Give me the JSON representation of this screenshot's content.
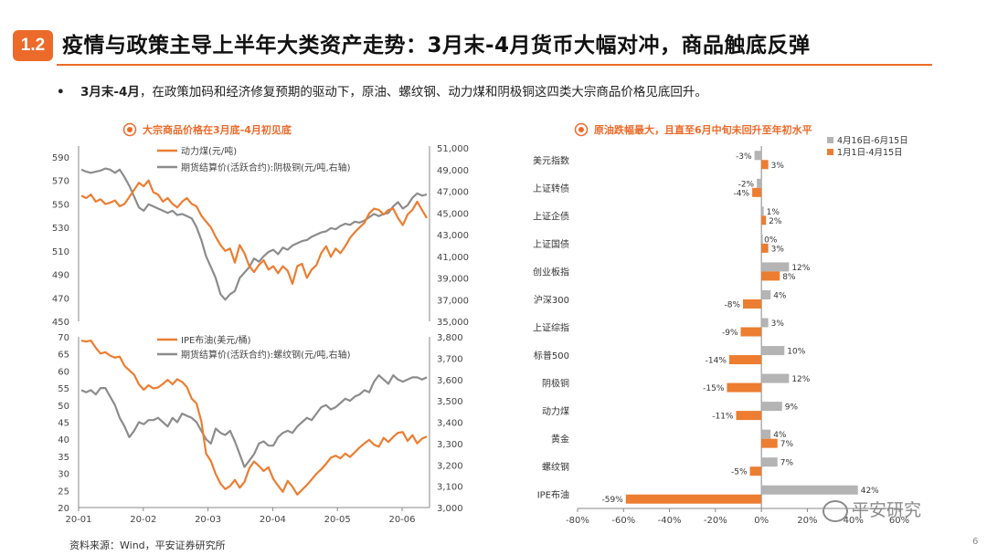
{
  "header": {
    "badge": "1.2",
    "title": "疫情与政策主导上半年大类资产走势：3月末-4月货币大幅对冲，商品触底反弹"
  },
  "bullet": {
    "marker": "•",
    "lead": "3月末-4月",
    "text": "，在政策加码和经济修复预期的驱动下，原油、螺纹钢、动力煤和阴极铜这四类大宗商品价格见底回升。"
  },
  "footer": {
    "source": "资料来源：Wind，平安证券研究所",
    "page": "6",
    "watermark": "平安研究"
  },
  "colors": {
    "accent": "#ec6a2a",
    "orange": "#ec7d31",
    "gray": "#8c8c8c",
    "bar_gray": "#b4b4b4"
  },
  "chart_data": [
    {
      "type": "line",
      "title": "大宗商品价格在3月底-4月初见底",
      "x_range": [
        "20-01",
        "20-06"
      ],
      "y_left": {
        "ylim": [
          450,
          590
        ],
        "ticks": [
          450,
          470,
          490,
          510,
          530,
          550,
          570,
          590
        ]
      },
      "y_right": {
        "ylim": [
          35000,
          51000
        ],
        "ticks": [
          "35,000",
          "37,000",
          "39,000",
          "41,000",
          "43,000",
          "45,000",
          "47,000",
          "49,000",
          "51,000"
        ]
      },
      "legend_placement": "top-left",
      "series": [
        {
          "name": "动力煤(元/吨)",
          "axis": "left",
          "color": "#ec7d31",
          "values": [
            557,
            555,
            558,
            552,
            554,
            550,
            551,
            553,
            548,
            550,
            556,
            562,
            568,
            565,
            570,
            560,
            558,
            552,
            555,
            550,
            547,
            552,
            555,
            550,
            548,
            540,
            535,
            530,
            522,
            515,
            510,
            512,
            500,
            515,
            508,
            497,
            492,
            498,
            502,
            494,
            497,
            491,
            497,
            493,
            482,
            497,
            499,
            487,
            494,
            498,
            508,
            514,
            505,
            512,
            508,
            514,
            521,
            526,
            530,
            534,
            542,
            546,
            545,
            541,
            545,
            546,
            538,
            532,
            541,
            545,
            552,
            545,
            538
          ]
        },
        {
          "name": "期货结算价(活跃合约):阴极铜(元/吨,右轴)",
          "axis": "right",
          "color": "#8c8c8c",
          "values": [
            49000,
            48800,
            48700,
            48800,
            48900,
            49100,
            49000,
            48700,
            49000,
            48300,
            47500,
            46500,
            45500,
            45200,
            45800,
            45600,
            45400,
            45200,
            45000,
            45200,
            44800,
            44900,
            44700,
            44500,
            43700,
            42500,
            41000,
            40000,
            39000,
            37500,
            37000,
            37500,
            37800,
            39000,
            39500,
            40000,
            40800,
            40500,
            41000,
            41400,
            41600,
            41200,
            41800,
            41600,
            42000,
            42200,
            42400,
            42500,
            42800,
            43000,
            43200,
            43300,
            43600,
            43500,
            43800,
            44000,
            43900,
            44200,
            44100,
            44300,
            44600,
            44900,
            44700,
            44900,
            45000,
            45600,
            46000,
            45400,
            45700,
            46400,
            46800,
            46600,
            46700
          ]
        }
      ]
    },
    {
      "type": "line",
      "title": "",
      "x_labels": [
        "20-01",
        "20-02",
        "20-03",
        "20-04",
        "20-05",
        "20-06"
      ],
      "y_left": {
        "ylim": [
          20,
          70
        ],
        "ticks": [
          20,
          25,
          30,
          35,
          40,
          45,
          50,
          55,
          60,
          65,
          70
        ]
      },
      "y_right": {
        "ylim": [
          3000,
          3800
        ],
        "ticks": [
          "3,000",
          "3,100",
          "3,200",
          "3,300",
          "3,400",
          "3,500",
          "3,600",
          "3,700",
          "3,800"
        ]
      },
      "legend_placement": "top-left",
      "series": [
        {
          "name": "IPE布油(美元/桶)",
          "axis": "left",
          "color": "#ec7d31",
          "values": [
            68.9,
            68.6,
            68.9,
            66.8,
            65.1,
            65.5,
            64.5,
            63.9,
            64.2,
            61.5,
            60.2,
            58.9,
            56.1,
            54.5,
            55.8,
            54.9,
            55.2,
            56.2,
            57.4,
            56.1,
            57.6,
            56.8,
            55.3,
            51.9,
            50.5,
            45.3,
            35.8,
            33.6,
            29.8,
            27.0,
            25.4,
            26.3,
            28.1,
            25.8,
            27.5,
            31.5,
            33.5,
            32.2,
            30.7,
            31.8,
            28.4,
            26.4,
            24.6,
            27.8,
            26.1,
            23.8,
            25.2,
            26.6,
            28.2,
            29.9,
            31.2,
            32.8,
            34.6,
            35.2,
            34.4,
            35.8,
            34.8,
            36.2,
            37.6,
            38.8,
            39.8,
            38.4,
            37.8,
            40.4,
            39.2,
            40.7,
            41.9,
            42.1,
            39.5,
            41.2,
            38.8,
            40.2,
            40.8
          ]
        },
        {
          "name": "期货结算价(活跃合约):螺纹钢(元/吨,右轴)",
          "axis": "right",
          "color": "#8c8c8c",
          "values": [
            3550,
            3540,
            3550,
            3530,
            3560,
            3560,
            3520,
            3480,
            3420,
            3380,
            3330,
            3360,
            3400,
            3390,
            3410,
            3410,
            3420,
            3400,
            3380,
            3420,
            3400,
            3440,
            3430,
            3420,
            3400,
            3360,
            3320,
            3300,
            3370,
            3350,
            3340,
            3360,
            3310,
            3250,
            3190,
            3220,
            3250,
            3300,
            3310,
            3290,
            3290,
            3330,
            3350,
            3360,
            3350,
            3380,
            3400,
            3420,
            3410,
            3440,
            3470,
            3480,
            3460,
            3470,
            3490,
            3510,
            3500,
            3520,
            3530,
            3550,
            3540,
            3590,
            3620,
            3600,
            3580,
            3620,
            3600,
            3590,
            3600,
            3610,
            3610,
            3600,
            3610
          ]
        }
      ]
    },
    {
      "type": "bar",
      "orientation": "horizontal",
      "title": "原油跌幅最大，且直至6月中旬未回升至年初水平",
      "categories": [
        "美元指数",
        "上证转债",
        "上证企债",
        "上证国债",
        "创业板指",
        "沪深300",
        "上证综指",
        "标普500",
        "阴极铜",
        "动力煤",
        "黄金",
        "螺纹钢",
        "IPE布油"
      ],
      "xlim": [
        -80,
        60
      ],
      "xticks": [
        "-80%",
        "-60%",
        "-40%",
        "-20%",
        "0%",
        "20%",
        "40%",
        "60%"
      ],
      "legend_placement": "top-right",
      "series": [
        {
          "name": "4月16日-6月15日",
          "color": "#b4b4b4",
          "values": [
            -3,
            -2,
            1,
            0,
            12,
            4,
            3,
            10,
            12,
            9,
            4,
            7,
            42
          ],
          "labels": [
            "-3%",
            "-2%",
            "1%",
            "0%",
            "12%",
            "4%",
            "3%",
            "10%",
            "12%",
            "9%",
            "4%",
            "7%",
            "42%"
          ]
        },
        {
          "name": "1月1日-4月15日",
          "color": "#ec7d31",
          "values": [
            3,
            -4,
            2,
            3,
            8,
            -8,
            -9,
            -14,
            -15,
            -11,
            7,
            -5,
            -59
          ],
          "labels": [
            "3%",
            "-4%",
            "2%",
            "3%",
            "8%",
            "-8%",
            "-9%",
            "-14%",
            "-15%",
            "-11%",
            "7%",
            "-5%",
            "-59%"
          ]
        }
      ]
    }
  ]
}
